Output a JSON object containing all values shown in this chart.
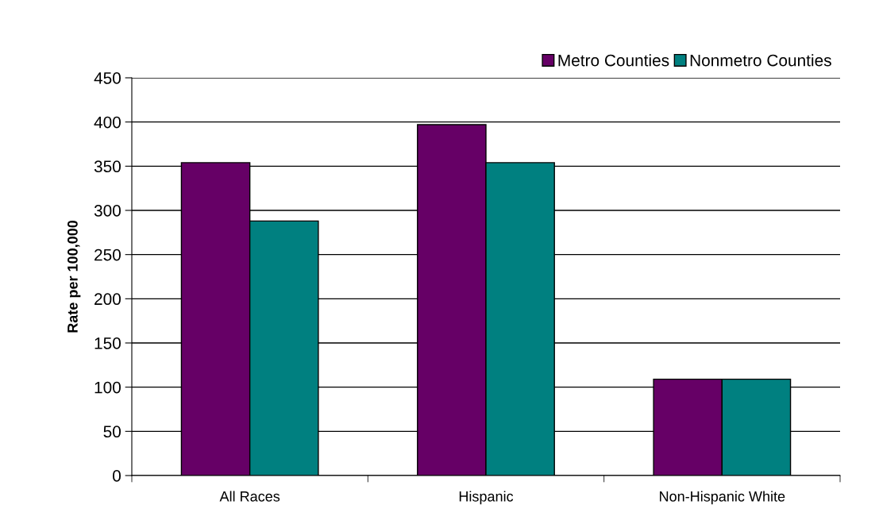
{
  "chart_data": {
    "type": "bar",
    "ylabel": "Rate per 100,000",
    "categories": [
      "All Races",
      "Hispanic",
      "Non-Hispanic White"
    ],
    "series": [
      {
        "name": "Metro Counties",
        "color": "#660066",
        "values": [
          354,
          397,
          109
        ]
      },
      {
        "name": "Nonmetro Counties",
        "color": "#008080",
        "values": [
          288,
          354,
          109
        ]
      }
    ],
    "ylim": [
      0,
      450
    ],
    "yticks": [
      0,
      50,
      100,
      150,
      200,
      250,
      300,
      350,
      400,
      450
    ],
    "grid": "y",
    "legend": "top right"
  }
}
